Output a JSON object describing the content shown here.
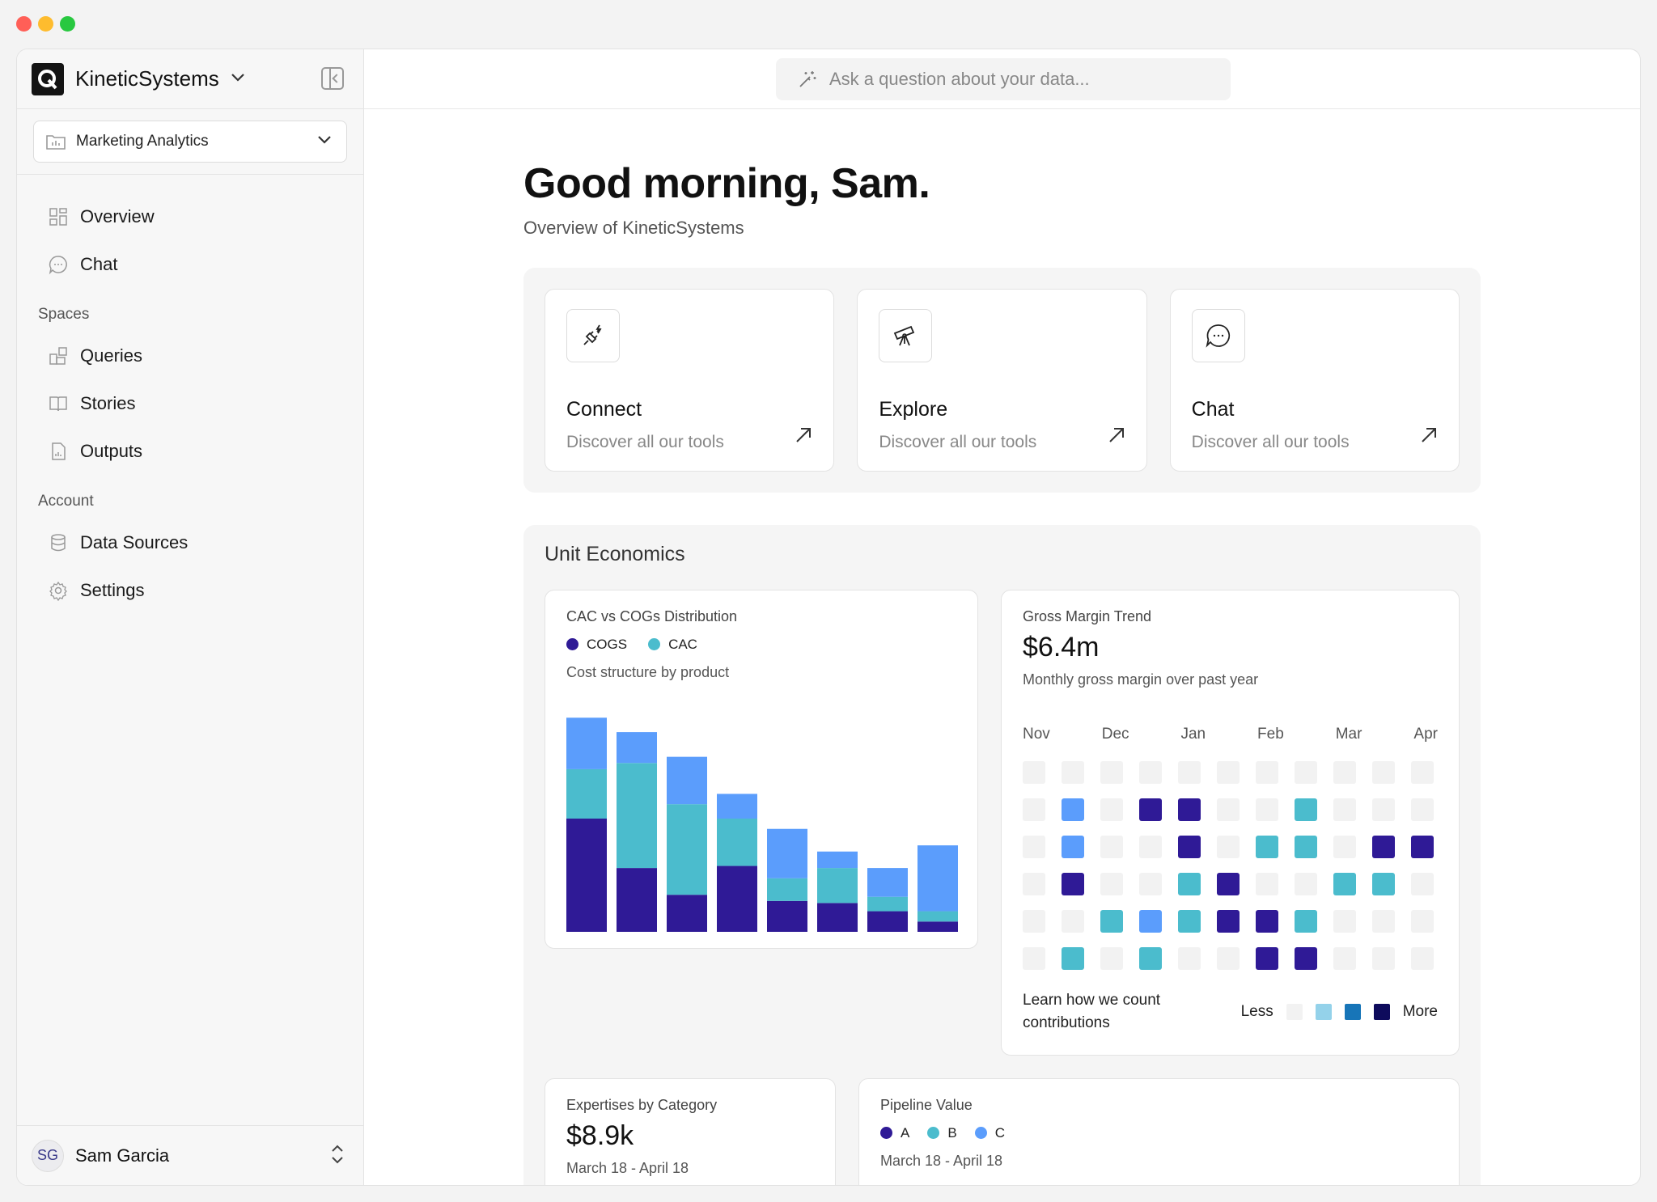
{
  "brand": {
    "name": "KineticSystems"
  },
  "workspace": {
    "label": "Marketing Analytics"
  },
  "nav": {
    "primary": [
      {
        "label": "Overview",
        "icon": "grid-icon"
      },
      {
        "label": "Chat",
        "icon": "chat-bubble-icon"
      }
    ],
    "spaces_heading": "Spaces",
    "spaces": [
      {
        "label": "Queries",
        "icon": "blocks-icon"
      },
      {
        "label": "Stories",
        "icon": "book-icon"
      },
      {
        "label": "Outputs",
        "icon": "document-icon"
      }
    ],
    "account_heading": "Account",
    "account": [
      {
        "label": "Data Sources",
        "icon": "database-icon"
      },
      {
        "label": "Settings",
        "icon": "gear-icon"
      }
    ]
  },
  "user": {
    "initials": "SG",
    "name": "Sam Garcia"
  },
  "search": {
    "placeholder": "Ask a question about your data..."
  },
  "greeting": {
    "title": "Good morning, Sam.",
    "subtitle": "Overview of KineticSystems"
  },
  "quick_actions": [
    {
      "title": "Connect",
      "desc": "Discover all our tools",
      "icon": "plug-icon"
    },
    {
      "title": "Explore",
      "desc": "Discover all our tools",
      "icon": "telescope-icon"
    },
    {
      "title": "Chat",
      "desc": "Discover all our tools",
      "icon": "message-icon"
    }
  ],
  "unit_economics": {
    "title": "Unit Economics"
  },
  "colors": {
    "cogs": "#2f1a96",
    "cac": "#4bbccd",
    "third": "#5b9dfc",
    "empty": "#f2f2f2"
  },
  "cac_card": {
    "title": "CAC vs COGs Distribution",
    "legend": [
      "COGS",
      "CAC"
    ],
    "subtitle": "Cost structure by product"
  },
  "gross_margin": {
    "title": "Gross Margin Trend",
    "value": "$6.4m",
    "subtitle": "Monthly gross margin over past year",
    "months": [
      "Nov",
      "Dec",
      "Jan",
      "Feb",
      "Mar",
      "Apr"
    ],
    "learn": "Learn how we count contributions",
    "less": "Less",
    "more": "More",
    "scale_colors": [
      "#f2f2f2",
      "#94d2ea",
      "#1775b8",
      "#0e0b5c"
    ],
    "grid": [
      [
        0,
        0,
        0,
        0,
        0,
        0,
        0,
        0,
        0,
        0,
        0
      ],
      [
        0,
        3,
        0,
        1,
        1,
        0,
        0,
        2,
        0,
        0,
        0
      ],
      [
        0,
        3,
        0,
        0,
        1,
        0,
        2,
        2,
        0,
        1,
        1
      ],
      [
        0,
        1,
        0,
        0,
        2,
        1,
        0,
        0,
        2,
        2,
        0
      ],
      [
        0,
        0,
        2,
        3,
        2,
        1,
        1,
        2,
        0,
        0,
        0
      ],
      [
        0,
        2,
        0,
        2,
        0,
        0,
        1,
        1,
        0,
        0,
        0
      ]
    ]
  },
  "chart_data": {
    "type": "bar",
    "stacked": true,
    "title": "CAC vs COGs Distribution",
    "categories": [
      "",
      "",
      "",
      "",
      "",
      "",
      "",
      ""
    ],
    "series": [
      {
        "name": "COGS",
        "values": [
          55,
          31,
          18,
          32,
          15,
          14,
          10,
          5
        ]
      },
      {
        "name": "CAC",
        "values": [
          24,
          51,
          44,
          23,
          11,
          17,
          7,
          5
        ]
      },
      {
        "name": "",
        "values": [
          25,
          15,
          23,
          12,
          24,
          8,
          14,
          32
        ]
      }
    ],
    "ylim": [
      0,
      110
    ],
    "grid": false
  },
  "expenses_card": {
    "title": "Expertises by Category",
    "value": "$8.9k",
    "range": "March 18 - April 18"
  },
  "pipeline_card": {
    "title": "Pipeline Value",
    "legend": [
      "A",
      "B",
      "C"
    ],
    "range": "March 18 - April 18"
  }
}
